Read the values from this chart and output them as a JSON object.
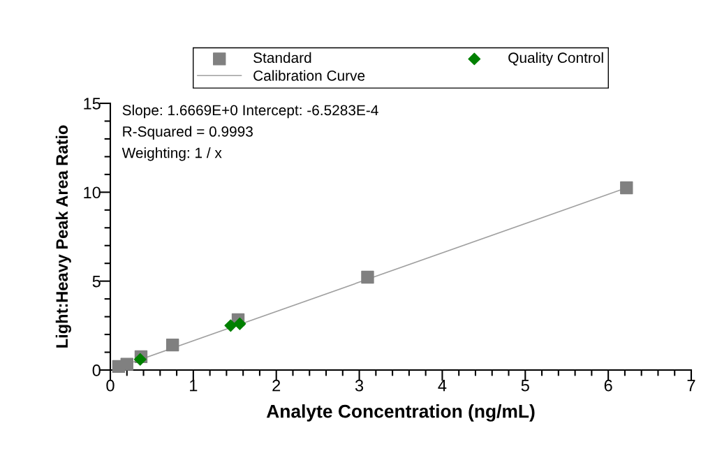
{
  "chart_data": {
    "type": "scatter",
    "xlabel": "Analyte Concentration (ng/mL)",
    "ylabel": "Light:Heavy Peak Area Ratio",
    "series": [
      {
        "name": "Standard",
        "color": "#808080",
        "marker": "square",
        "x": [
          0.1,
          0.2,
          0.37,
          0.75,
          1.54,
          3.1,
          6.22
        ],
        "values": [
          0.2,
          0.33,
          0.75,
          1.41,
          2.83,
          5.22,
          10.25
        ]
      },
      {
        "name": "Quality Control",
        "color": "#008000",
        "marker": "diamond",
        "x": [
          0.36,
          1.45,
          1.56
        ],
        "values": [
          0.6,
          2.5,
          2.6
        ]
      },
      {
        "name": "Calibration Curve",
        "type": "line",
        "color": "#a0a0a0",
        "marker": "none",
        "line_style": "solid",
        "x": [
          0.1,
          6.22
        ],
        "values": [
          0.16,
          10.25
        ]
      }
    ],
    "xlim": [
      0,
      7
    ],
    "ylim": [
      0,
      15
    ],
    "xticks": [
      0,
      {
        "value": 0.2,
        "label": null
      },
      {
        "value": 0.4,
        "label": null
      },
      {
        "value": 0.6,
        "label": null
      },
      {
        "value": 0.8,
        "label": null
      },
      1,
      {
        "value": 1.2,
        "label": null
      },
      {
        "value": 1.4,
        "label": null
      },
      {
        "value": 1.6,
        "label": null
      },
      {
        "value": 1.8,
        "label": null
      },
      2,
      {
        "value": 2.2,
        "label": null
      },
      {
        "value": 2.4,
        "label": null
      },
      {
        "value": 2.6,
        "label": null
      },
      {
        "value": 2.8,
        "label": null
      },
      3,
      {
        "value": 3.2,
        "label": null
      },
      {
        "value": 3.4,
        "label": null
      },
      {
        "value": 3.6,
        "label": null
      },
      {
        "value": 3.8,
        "label": null
      },
      4,
      {
        "value": 4.2,
        "label": null
      },
      {
        "value": 4.4,
        "label": null
      },
      {
        "value": 4.6,
        "label": null
      },
      {
        "value": 4.8,
        "label": null
      },
      5,
      {
        "value": 5.2,
        "label": null
      },
      {
        "value": 5.4,
        "label": null
      },
      {
        "value": 5.6,
        "label": null
      },
      {
        "value": 5.8,
        "label": null
      },
      6,
      {
        "value": 6.2,
        "label": null
      },
      {
        "value": 6.4,
        "label": null
      },
      {
        "value": 6.6,
        "label": null
      },
      {
        "value": 6.8,
        "label": null
      },
      7
    ],
    "yticks": [
      0,
      {
        "value": 1,
        "label": null
      },
      {
        "value": 2,
        "label": null
      },
      {
        "value": 3,
        "label": null
      },
      {
        "value": 4,
        "label": null
      },
      5,
      {
        "value": 6,
        "label": null
      },
      {
        "value": 7,
        "label": null
      },
      {
        "value": 8,
        "label": null
      },
      {
        "value": 9,
        "label": null
      },
      10,
      {
        "value": 11,
        "label": null
      },
      {
        "value": 12,
        "label": null
      },
      {
        "value": 13,
        "label": null
      },
      {
        "value": 14,
        "label": null
      },
      15
    ],
    "annotations": [
      "Slope: 1.6669E+0 Intercept: -6.5283E-4",
      "R-Squared = 0.9993",
      "Weighting: 1 / x"
    ],
    "legend": "top",
    "grid": false
  }
}
